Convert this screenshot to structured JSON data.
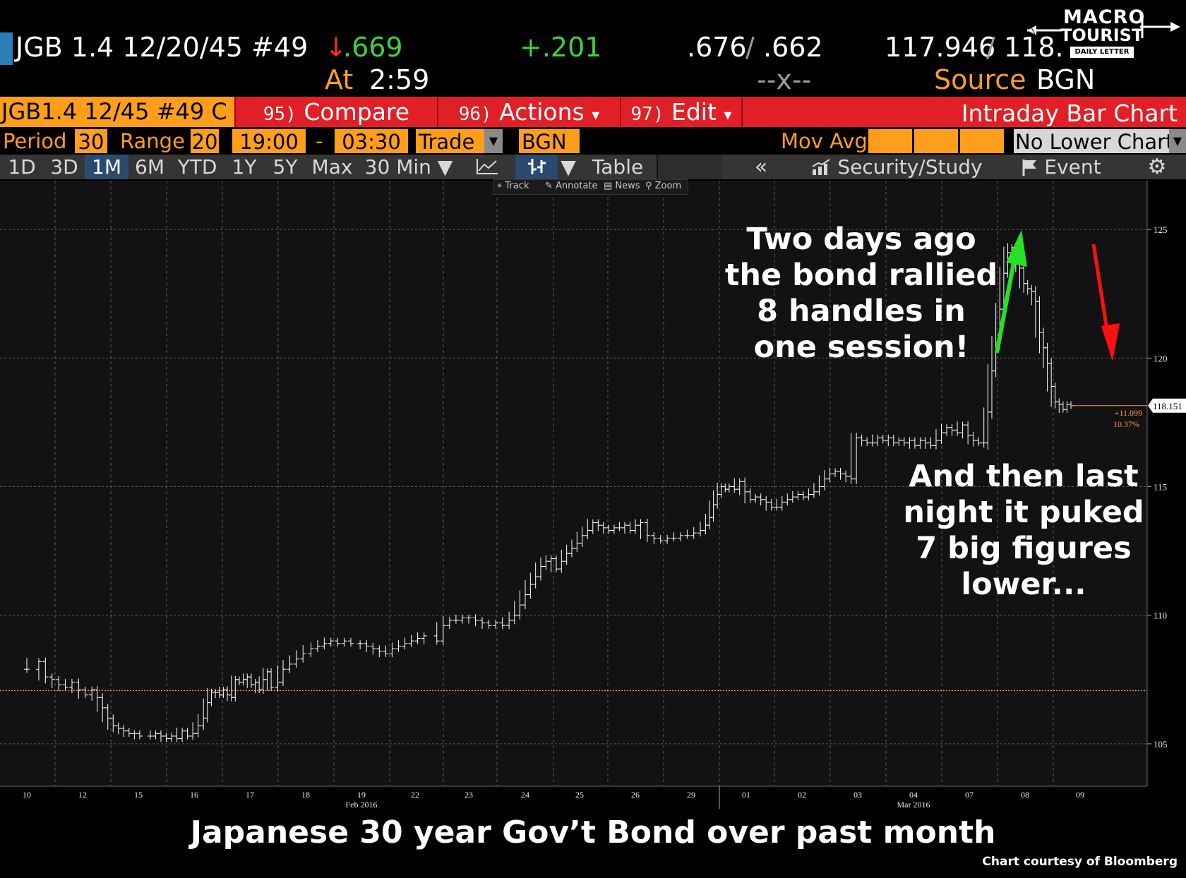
{
  "ticker": {
    "security": "JGB 1.4 12/20/45 #49",
    "arrow": "↓",
    "yield": ".669",
    "change": "+.201",
    "bid": ".676",
    "slash": "/",
    "ask": ".662",
    "price_bid": "117.946",
    "price_sep": "/",
    "price_ask": "118.",
    "at_label": "At",
    "time": "2:59",
    "placeholder": "--x--",
    "source_label": "Source",
    "source": "BGN"
  },
  "logo": {
    "line1": "MACRO",
    "line2": "TOURIST",
    "line3": "DAILY LETTER"
  },
  "cmdbar": {
    "security_short": "JGB1.4 12/45 #49 C",
    "compare_num": "95)",
    "compare_label": "Compare",
    "actions_num": "96)",
    "actions_label": "Actions",
    "edit_num": "97)",
    "edit_label": "Edit",
    "dropdown_glyph": "▾",
    "chart_title": "Intraday Bar Chart"
  },
  "settings": {
    "period_label": "Period",
    "period": "30",
    "range_label": "Range",
    "range": "20",
    "start_time": "19:00",
    "dash": "-",
    "end_time": "03:30",
    "trade": "Trade",
    "bgn": "BGN",
    "mov_avg_label": "Mov Avg",
    "lower_chart": "No Lower Chart"
  },
  "tabs": [
    "1D",
    "3D",
    "1M",
    "6M",
    "YTD",
    "1Y",
    "5Y",
    "Max",
    "30 Min ▼"
  ],
  "active_tab": "1M",
  "toolbar": {
    "table": "Table",
    "collapse": "«",
    "security_study": "Security/Study",
    "event": "Event",
    "settings_glyph": "⚙"
  },
  "mini_toolbar": {
    "track": "Track",
    "annotate": "Annotate",
    "news": "News",
    "zoom": "Zoom"
  },
  "annotations": {
    "top": [
      "Two days ago",
      "the bond rallied",
      "8 handles in",
      "one session!"
    ],
    "bottom": [
      "And then last",
      "night it puked",
      "7 big figures",
      "lower..."
    ]
  },
  "caption": "Japanese 30 year Gov’t Bond over past month",
  "credit": "Chart courtesy of Bloomberg",
  "colors": {
    "accent": "#ff9e1b",
    "red_bar": "#e01f26",
    "up_arrow": "#27e022",
    "down_arrow": "#ff1010",
    "bars": "#ffffff",
    "ref_line": "#ff9e1b"
  },
  "chart_data": {
    "type": "bar",
    "title": "",
    "xlabel": "",
    "ylabel": "",
    "ylim": [
      103.35,
      126.9
    ],
    "yticks": [
      105,
      110,
      115,
      120,
      125
    ],
    "ytick_labels": [
      "105",
      "110",
      "115",
      "120",
      "125"
    ],
    "days": [
      "10",
      "12",
      "15",
      "16",
      "17",
      "18",
      "19",
      "22",
      "23",
      "24",
      "25",
      "26",
      "29",
      "01",
      "02",
      "03",
      "04",
      "07",
      "08",
      "09"
    ],
    "month_labels": [
      {
        "label": "Feb 2016",
        "under_day": "19"
      },
      {
        "label": "Mar 2016",
        "under_day": "04"
      }
    ],
    "reference_line": 107.07,
    "last_price": "118.151",
    "change_label": "+11.099",
    "change_pct_label": "10.37%",
    "series": [
      {
        "values": [
          [
            0,
            107.9
          ],
          [
            0.9,
            108.2
          ],
          [
            1.4,
            107.6
          ],
          [
            1.9,
            107.5
          ],
          [
            2.4,
            107.3
          ],
          [
            2.9,
            107.2
          ],
          [
            3.4,
            107.4
          ],
          [
            3.9,
            107.1
          ],
          [
            4.4,
            106.9
          ],
          [
            4.9,
            107.1
          ],
          [
            5.3,
            106.8
          ],
          [
            5.7,
            106.4
          ],
          [
            6.1,
            106.0
          ],
          [
            6.5,
            105.7
          ],
          [
            6.9,
            105.6
          ],
          [
            7.3,
            105.5
          ],
          [
            7.7,
            105.4
          ],
          [
            8.1,
            105.4
          ],
          [
            8.5,
            105.3
          ],
          [
            9.3,
            105.3
          ],
          [
            9.7,
            105.4
          ],
          [
            10.1,
            105.3
          ],
          [
            10.5,
            105.2
          ],
          [
            10.9,
            105.3
          ],
          [
            11.3,
            105.2
          ],
          [
            11.7,
            105.5
          ],
          [
            12.1,
            105.3
          ],
          [
            12.5,
            105.4
          ],
          [
            12.9,
            105.7
          ],
          [
            13.3,
            106.0
          ],
          [
            13.6,
            106.6
          ],
          [
            13.9,
            107.0
          ],
          [
            14.2,
            107.0
          ],
          [
            14.5,
            106.9
          ],
          [
            14.8,
            107.1
          ],
          [
            15.1,
            106.9
          ],
          [
            15.4,
            106.8
          ],
          [
            15.7,
            107.5
          ],
          [
            16.0,
            107.4
          ],
          [
            16.3,
            107.5
          ],
          [
            16.6,
            107.6
          ],
          [
            16.9,
            107.3
          ],
          [
            17.2,
            107.4
          ],
          [
            17.5,
            107.1
          ],
          [
            17.8,
            107.5
          ],
          [
            18.1,
            107.8
          ],
          [
            18.4,
            107.2
          ],
          [
            18.9,
            107.4
          ],
          [
            19.3,
            107.9
          ],
          [
            19.8,
            108.1
          ],
          [
            20.3,
            108.3
          ],
          [
            20.8,
            108.5
          ],
          [
            21.4,
            108.7
          ],
          [
            21.9,
            108.8
          ],
          [
            22.4,
            108.9
          ],
          [
            22.9,
            109.0
          ],
          [
            23.4,
            108.9
          ],
          [
            23.9,
            109.0
          ],
          [
            24.4,
            108.9
          ],
          [
            25.1,
            108.9
          ],
          [
            25.6,
            108.8
          ],
          [
            26.1,
            108.7
          ],
          [
            26.6,
            108.6
          ],
          [
            27.1,
            108.5
          ],
          [
            27.6,
            108.7
          ],
          [
            28.1,
            108.8
          ],
          [
            28.6,
            108.9
          ],
          [
            29.1,
            109.0
          ],
          [
            29.6,
            109.1
          ],
          [
            30.1,
            109.2
          ],
          [
            31.1,
            109.0
          ],
          [
            31.6,
            109.6
          ],
          [
            32.1,
            109.8
          ],
          [
            32.6,
            109.8
          ],
          [
            33.1,
            109.9
          ],
          [
            33.6,
            109.9
          ],
          [
            34.1,
            109.8
          ],
          [
            34.6,
            109.7
          ],
          [
            35.1,
            109.6
          ],
          [
            35.6,
            109.7
          ],
          [
            36.1,
            109.6
          ],
          [
            36.6,
            109.8
          ],
          [
            37.0,
            110.0
          ],
          [
            37.4,
            110.4
          ],
          [
            37.8,
            110.8
          ],
          [
            38.2,
            111.2
          ],
          [
            38.6,
            111.5
          ],
          [
            39.0,
            111.9
          ],
          [
            39.4,
            112.1
          ],
          [
            39.8,
            112.2
          ],
          [
            40.2,
            111.8
          ],
          [
            40.6,
            112.1
          ],
          [
            41.0,
            112.4
          ],
          [
            41.4,
            112.6
          ],
          [
            41.8,
            112.8
          ],
          [
            42.2,
            113.1
          ],
          [
            42.6,
            113.3
          ],
          [
            43.0,
            113.6
          ],
          [
            43.4,
            113.5
          ],
          [
            43.8,
            113.4
          ],
          [
            44.2,
            113.3
          ],
          [
            44.6,
            113.4
          ],
          [
            45.0,
            113.4
          ],
          [
            45.4,
            113.5
          ],
          [
            45.8,
            113.3
          ],
          [
            46.2,
            113.5
          ],
          [
            46.6,
            113.6
          ],
          [
            47.1,
            113.1
          ],
          [
            47.6,
            113.0
          ],
          [
            48.1,
            112.9
          ],
          [
            48.6,
            113.0
          ],
          [
            49.1,
            113.0
          ],
          [
            49.6,
            113.1
          ],
          [
            50.1,
            113.1
          ],
          [
            50.6,
            113.2
          ],
          [
            51.1,
            113.3
          ],
          [
            51.5,
            113.5
          ],
          [
            51.8,
            113.8
          ],
          [
            52.1,
            114.3
          ],
          [
            52.4,
            114.7
          ],
          [
            52.7,
            115.0
          ],
          [
            53.0,
            114.9
          ],
          [
            53.3,
            115.0
          ],
          [
            53.7,
            114.9
          ],
          [
            54.1,
            115.2
          ],
          [
            54.5,
            114.8
          ],
          [
            54.9,
            114.5
          ],
          [
            55.3,
            114.6
          ],
          [
            55.7,
            114.5
          ],
          [
            56.1,
            114.4
          ],
          [
            56.5,
            114.2
          ],
          [
            56.9,
            114.2
          ],
          [
            57.3,
            114.4
          ],
          [
            57.7,
            114.5
          ],
          [
            58.1,
            114.6
          ],
          [
            58.5,
            114.7
          ],
          [
            58.9,
            114.6
          ],
          [
            59.3,
            114.7
          ],
          [
            59.7,
            114.8
          ],
          [
            60.1,
            115.0
          ],
          [
            60.5,
            115.3
          ],
          [
            60.9,
            115.5
          ],
          [
            61.3,
            115.6
          ],
          [
            61.7,
            115.5
          ],
          [
            62.1,
            115.4
          ],
          [
            62.5,
            115.3
          ],
          [
            62.9,
            116.9
          ],
          [
            63.3,
            116.8
          ],
          [
            63.7,
            116.7
          ],
          [
            64.1,
            116.7
          ],
          [
            64.5,
            116.9
          ],
          [
            64.9,
            116.8
          ],
          [
            65.3,
            116.9
          ],
          [
            65.7,
            116.7
          ],
          [
            66.1,
            116.8
          ],
          [
            66.5,
            116.7
          ],
          [
            66.9,
            116.8
          ],
          [
            67.3,
            116.6
          ],
          [
            67.7,
            116.8
          ],
          [
            68.1,
            116.7
          ],
          [
            68.5,
            116.6
          ],
          [
            68.9,
            116.8
          ],
          [
            69.3,
            117.1
          ],
          [
            69.7,
            117.3
          ],
          [
            70.1,
            117.2
          ],
          [
            70.5,
            117.1
          ],
          [
            70.9,
            117.4
          ],
          [
            71.3,
            117.0
          ],
          [
            71.7,
            116.8
          ],
          [
            72.1,
            116.7
          ],
          [
            72.5,
            116.7
          ],
          [
            72.8,
            117.9
          ],
          [
            73.1,
            119.5
          ],
          [
            73.4,
            120.6
          ],
          [
            73.7,
            121.9
          ],
          [
            74.0,
            123.3
          ],
          [
            74.3,
            124.1
          ],
          [
            74.6,
            124.3
          ],
          [
            74.9,
            124.2
          ],
          [
            75.2,
            123.5
          ],
          [
            75.5,
            122.9
          ],
          [
            75.8,
            122.7
          ],
          [
            76.1,
            122.6
          ],
          [
            76.4,
            122.2
          ],
          [
            76.7,
            121.0
          ],
          [
            77.0,
            120.4
          ],
          [
            77.3,
            119.8
          ],
          [
            77.6,
            118.9
          ],
          [
            77.9,
            118.3
          ],
          [
            78.2,
            118.2
          ],
          [
            78.5,
            118.0
          ],
          [
            78.8,
            118.2
          ],
          [
            79.1,
            118.15
          ]
        ]
      }
    ]
  }
}
